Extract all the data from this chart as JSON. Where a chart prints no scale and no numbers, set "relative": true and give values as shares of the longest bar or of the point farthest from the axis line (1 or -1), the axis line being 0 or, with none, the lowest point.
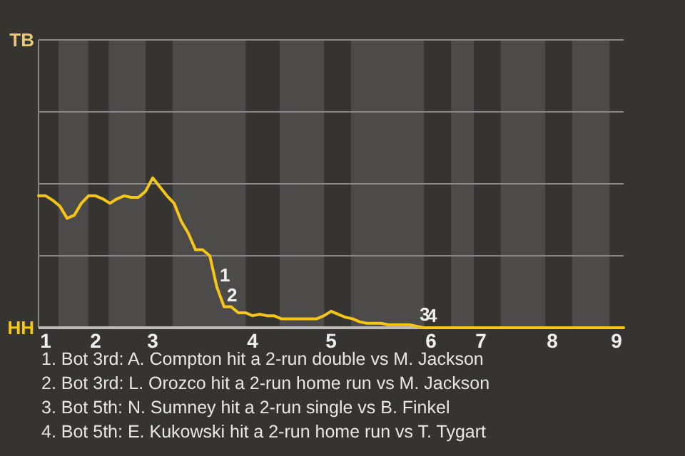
{
  "chart_data": {
    "type": "line",
    "relative": true,
    "categories": [
      null,
      "1",
      null,
      null,
      null,
      null,
      null,
      null,
      "2",
      null,
      null,
      null,
      null,
      null,
      null,
      null,
      "3",
      null,
      null,
      null,
      null,
      null,
      null,
      null,
      null,
      null,
      null,
      null,
      null,
      null,
      "4",
      null,
      null,
      null,
      null,
      null,
      null,
      null,
      null,
      null,
      null,
      "5",
      null,
      null,
      null,
      null,
      null,
      null,
      null,
      null,
      null,
      null,
      null,
      null,
      null,
      "6",
      null,
      null,
      null,
      null,
      null,
      null,
      "7",
      null,
      null,
      null,
      null,
      null,
      null,
      null,
      null,
      null,
      "8",
      null,
      null,
      null,
      null,
      null,
      null,
      null,
      null,
      "9",
      null
    ],
    "series": [
      {
        "color": "#f5c518",
        "values": [
          0.88,
          0.88,
          0.85,
          0.81,
          0.73,
          0.75,
          0.83,
          0.88,
          0.88,
          0.86,
          0.83,
          0.86,
          0.88,
          0.87,
          0.87,
          0.91,
          1,
          0.94,
          0.88,
          0.83,
          0.71,
          0.63,
          0.52,
          0.52,
          0.48,
          0.27,
          0.14,
          0.14,
          0.1,
          0.1,
          0.08,
          0.09,
          0.08,
          0.08,
          0.06,
          0.06,
          0.06,
          0.06,
          0.06,
          0.06,
          0.08,
          0.11,
          0.09,
          0.07,
          0.06,
          0.04,
          0.03,
          0.03,
          0.03,
          0.02,
          0.02,
          0.02,
          0.02,
          0.01,
          0,
          0,
          0,
          0,
          0,
          0,
          0,
          0,
          0,
          0,
          0,
          0,
          0,
          0,
          0,
          0,
          0,
          0,
          0,
          0,
          0,
          0,
          0,
          0,
          0,
          0,
          0,
          0,
          0
        ]
      }
    ],
    "ylim": [
      0,
      1.92
    ],
    "ref_lines": [
      {
        "axis": "y",
        "value": 0.48,
        "color": "#8a8886"
      },
      {
        "axis": "y",
        "value": 0.96,
        "color": "#8a8886"
      },
      {
        "axis": "y",
        "value": 1.44,
        "color": "#8a8886"
      },
      {
        "axis": "y",
        "value": 1.92,
        "color": "#8a8886"
      }
    ],
    "marker": "none",
    "line_style": "solid",
    "annotations": [
      {
        "text": "1",
        "y": 0.27
      },
      {
        "text": "2",
        "y": 0.14
      },
      {
        "text": "3",
        "y": 0.01
      },
      {
        "text": "4",
        "y": 0
      },
      "TB",
      "HH",
      "1. Bot 3rd: A. Compton hit a 2-run double vs M. Jackson",
      "2. Bot 3rd: L. Orozco hit a 2-run home run vs M. Jackson",
      "3. Bot 5th: N. Sumney hit a 2-run single vs B. Finkel",
      "4. Bot 5th: E. Kukowski hit a 2-run home run vs T. Tygart"
    ]
  }
}
